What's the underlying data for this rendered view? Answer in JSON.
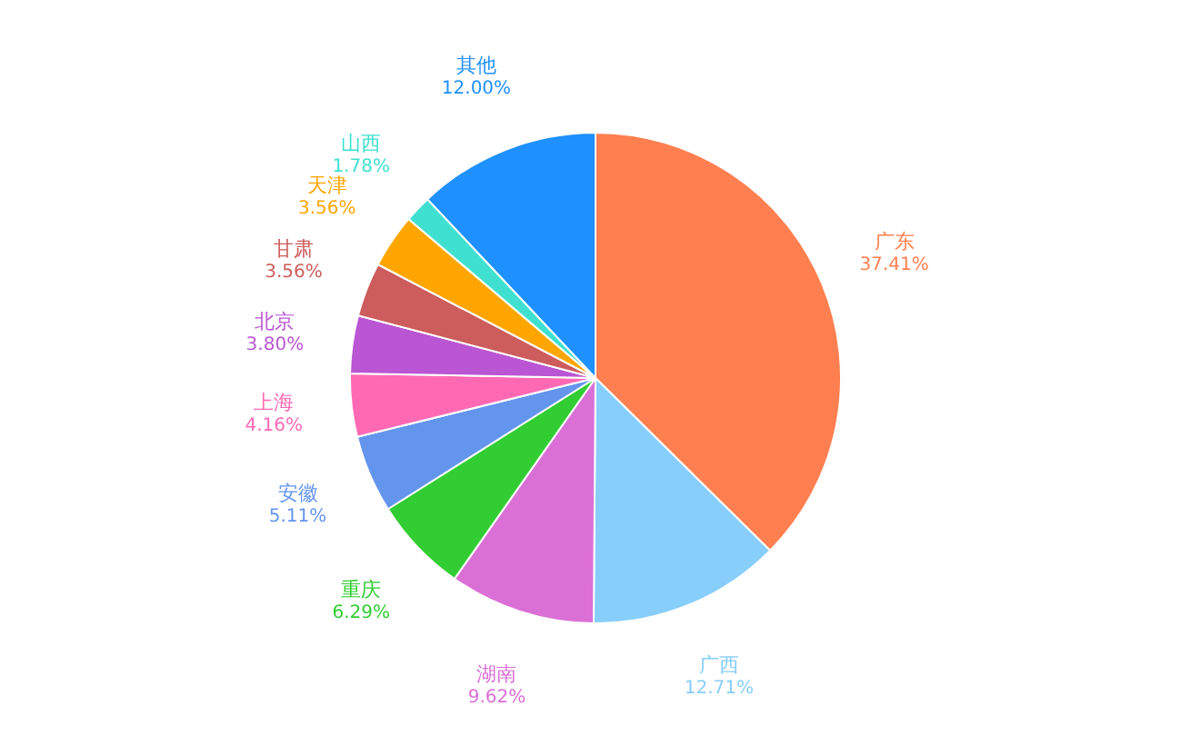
{
  "chart_data": {
    "type": "pie",
    "categories": [
      "广东",
      "广西",
      "湖南",
      "重庆",
      "安徽",
      "上海",
      "北京",
      "甘肃",
      "天津",
      "山西",
      "其他"
    ],
    "values": [
      37.41,
      12.71,
      9.62,
      6.29,
      5.11,
      4.16,
      3.8,
      3.56,
      3.56,
      1.78,
      12.0
    ],
    "value_labels": [
      "37.41%",
      "12.71%",
      "9.62%",
      "6.29%",
      "5.11%",
      "4.16%",
      "3.80%",
      "3.56%",
      "3.56%",
      "1.78%",
      "12.00%"
    ],
    "colors": [
      "#ff7f50",
      "#87cefa",
      "#da70d6",
      "#32cd32",
      "#6495ed",
      "#ff69b4",
      "#ba55d3",
      "#cd5c5c",
      "#ffa500",
      "#40e0d0",
      "#1e90ff"
    ],
    "legend": false
  }
}
